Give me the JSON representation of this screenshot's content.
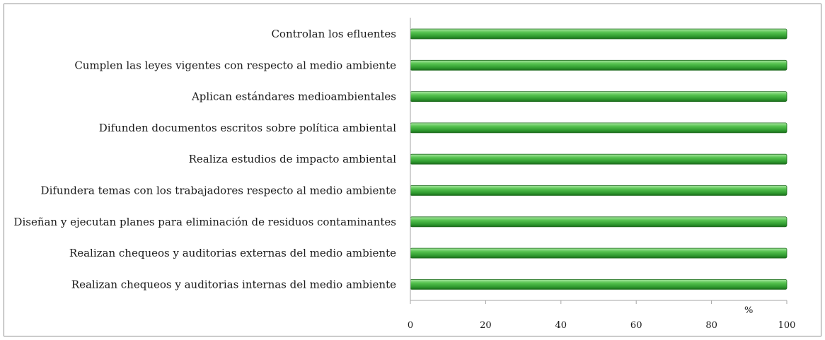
{
  "chart_data": {
    "type": "bar",
    "orientation": "horizontal",
    "categories": [
      "Controlan los efluentes",
      "Cumplen las leyes vigentes con respecto al medio ambiente",
      "Aplican estándares medioambientales",
      "Difunden documentos escritos sobre política ambiental",
      "Realiza estudios de impacto ambiental",
      "Difundera temas con los trabajadores respecto al medio ambiente",
      "Diseñan y ejecutan planes para eliminación de residuos contaminantes",
      "Realizan chequeos y auditorias externas del medio ambiente",
      "Realizan chequeos y auditorias internas del medio ambiente"
    ],
    "values": [
      100,
      100,
      100,
      100,
      100,
      100,
      100,
      100,
      100
    ],
    "xlim": [
      0,
      100
    ],
    "xticks": [
      "0",
      "20",
      "40",
      "60",
      "80",
      "100"
    ],
    "xlabel": "%",
    "title": "",
    "grid": false,
    "bar_color": "#3fa53f"
  }
}
